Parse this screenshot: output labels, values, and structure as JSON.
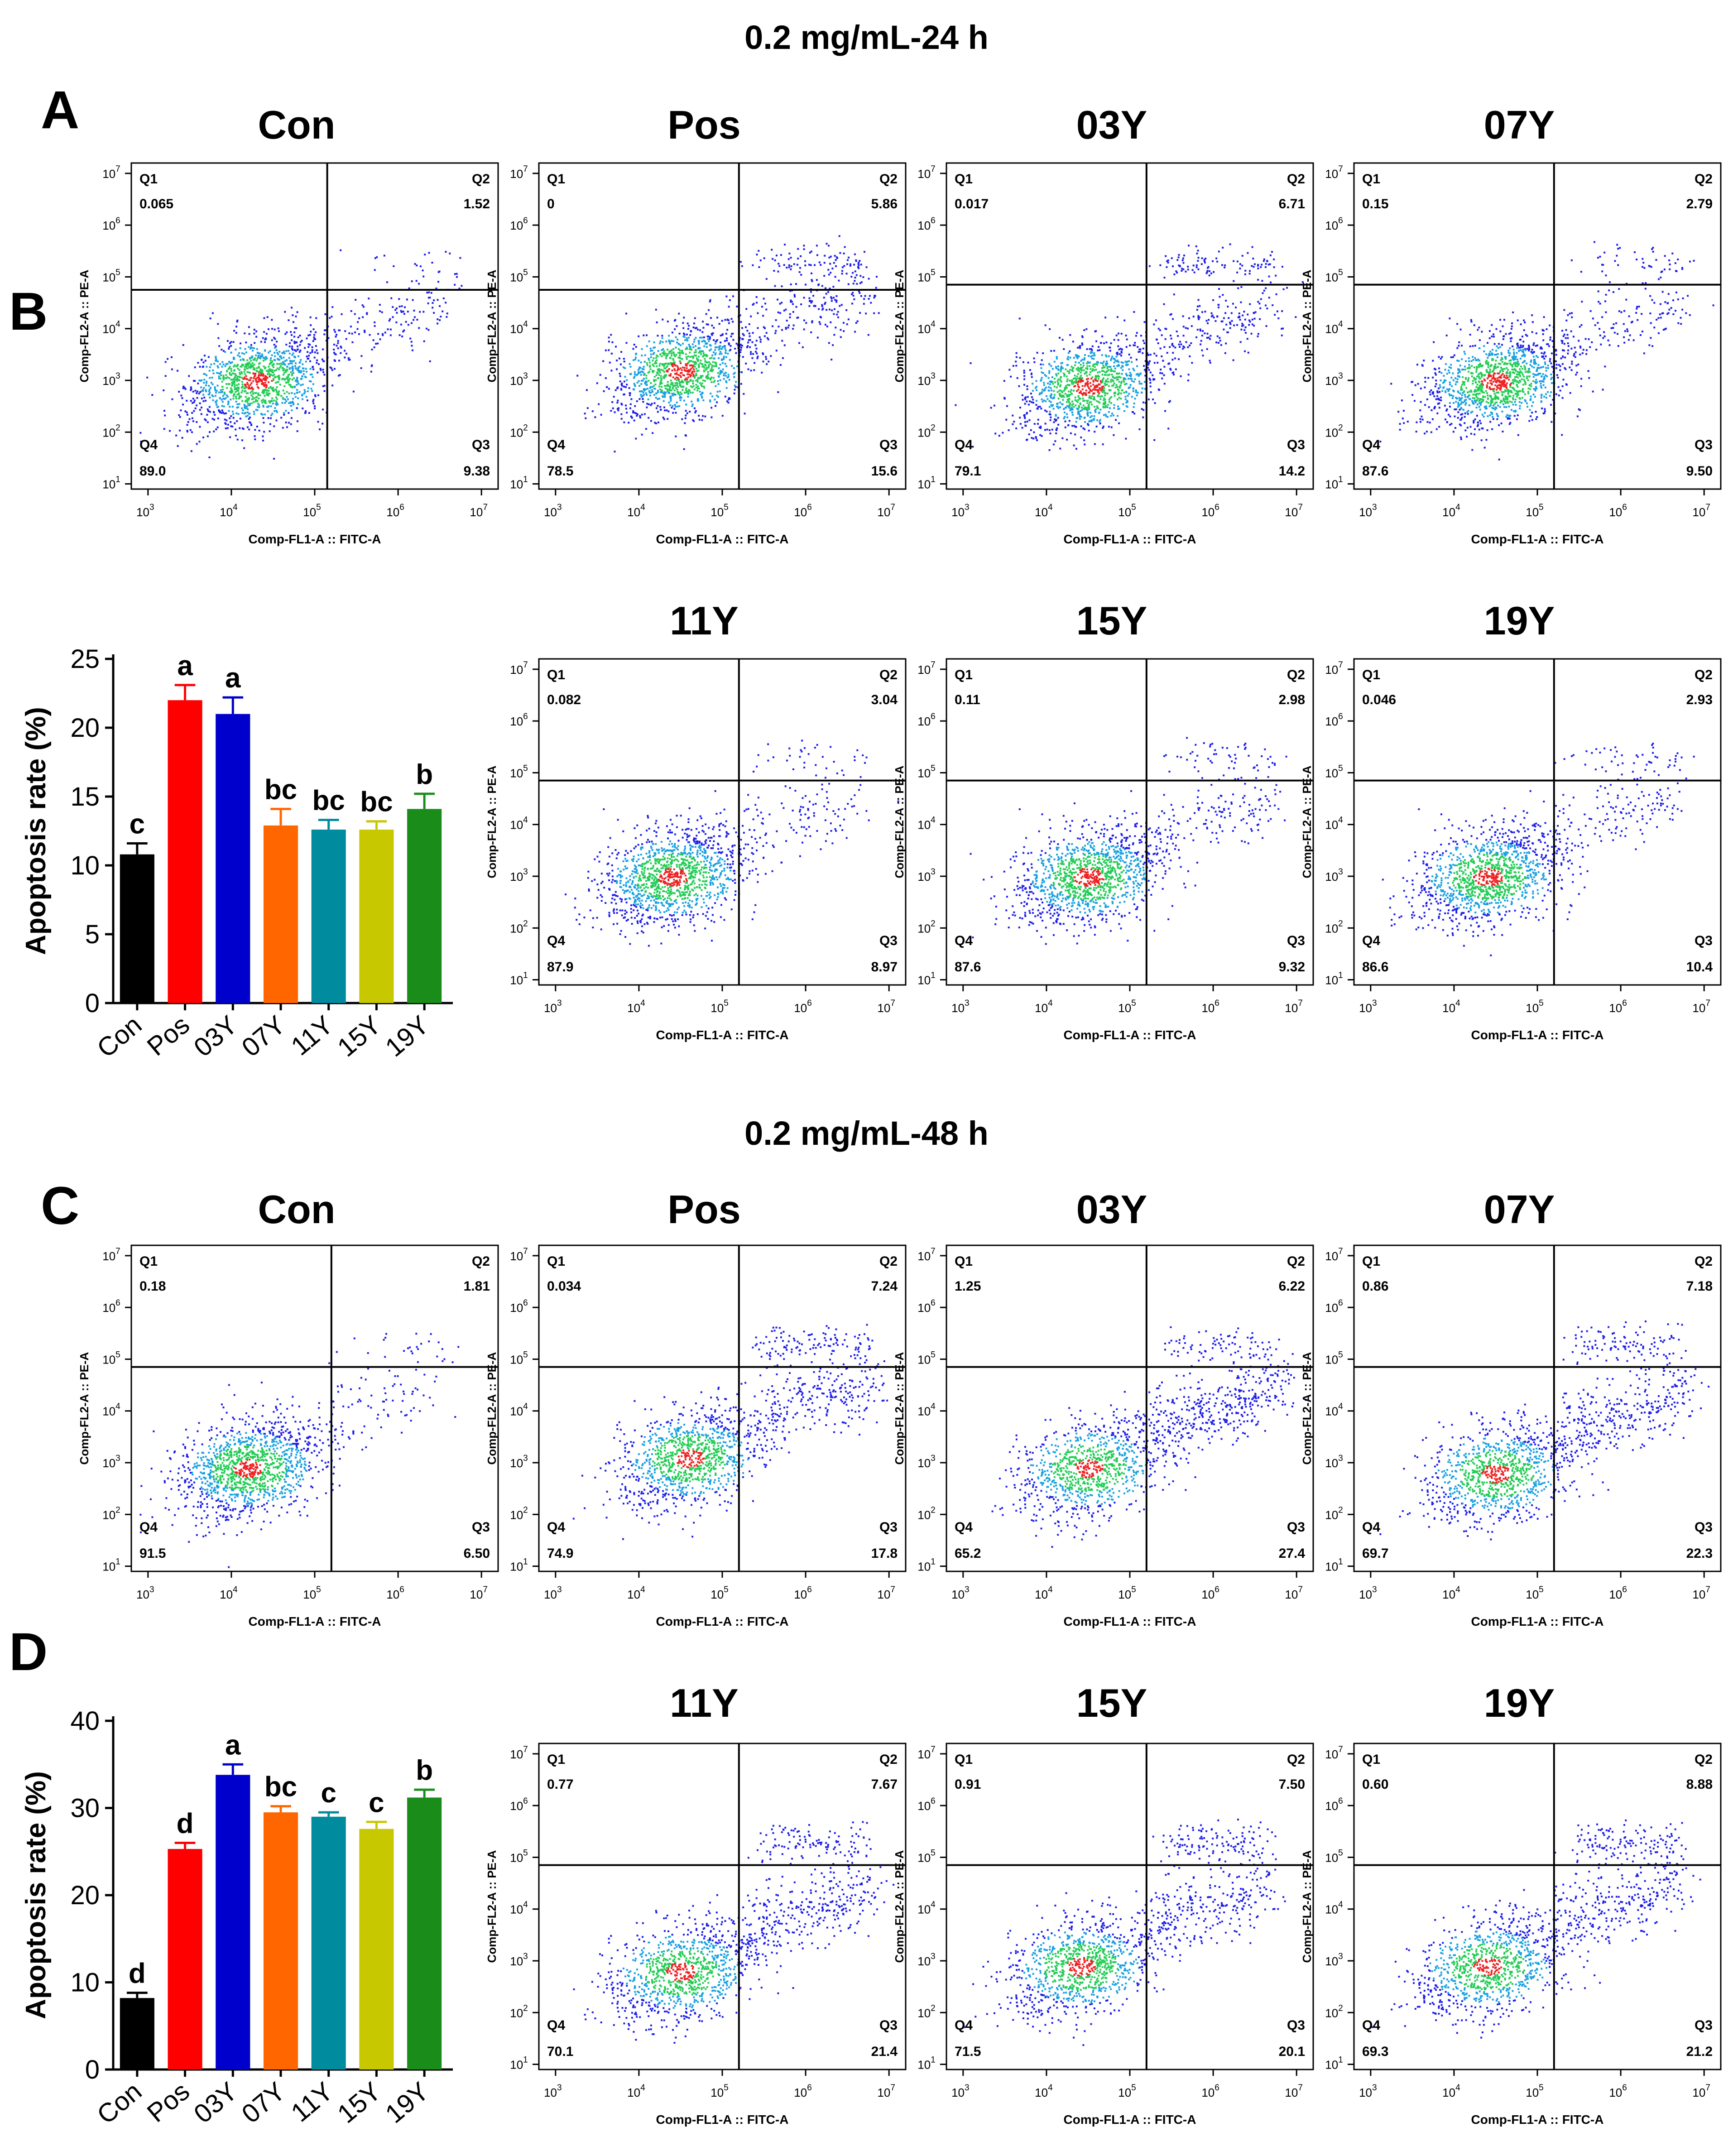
{
  "sections": [
    {
      "title": "0.2 mg/mL-24 h",
      "flow_panel_letter": "A",
      "bar_panel_letter": "B"
    },
    {
      "title": "0.2 mg/mL-48 h",
      "flow_panel_letter": "C",
      "bar_panel_letter": "D"
    }
  ],
  "flow_axes": {
    "xlabel": "Comp-FL1-A :: FITC-A",
    "ylabel": "Comp-FL2-A :: PE-A",
    "x_ticks": [
      "3",
      "4",
      "5",
      "6",
      "7"
    ],
    "y_ticks": [
      "1",
      "2",
      "3",
      "4",
      "5",
      "6",
      "7"
    ],
    "tick_base": "10",
    "quadrant_labels": [
      "Q1",
      "Q2",
      "Q3",
      "Q4"
    ]
  },
  "colors": {
    "plot_frame": "#000000",
    "density_low": "#1e1ee8",
    "density_mid": "#22cc55",
    "density_high": "#ee2222"
  },
  "chart_data": [
    {
      "type": "scatter",
      "description_kind": "flow-cytometry-quadrants",
      "section": "0.2 mg/mL-24 h",
      "plots": [
        {
          "name": "Con",
          "Q1": "0.065",
          "Q2": "1.52",
          "Q3": "9.38",
          "Q4": "89.0",
          "gate_x_log": 5.15,
          "gate_y_log": 4.75,
          "centroid": [
            4.3,
            3.0
          ]
        },
        {
          "name": "Pos",
          "Q1": "0",
          "Q2": "5.86",
          "Q3": "15.6",
          "Q4": "78.5",
          "gate_x_log": 5.2,
          "gate_y_log": 4.75,
          "centroid": [
            4.5,
            3.2
          ]
        },
        {
          "name": "03Y",
          "Q1": "0.017",
          "Q2": "6.71",
          "Q3": "14.2",
          "Q4": "79.1",
          "gate_x_log": 5.2,
          "gate_y_log": 4.85,
          "centroid": [
            4.5,
            2.9
          ]
        },
        {
          "name": "07Y",
          "Q1": "0.15",
          "Q2": "2.79",
          "Q3": "9.50",
          "Q4": "87.6",
          "gate_x_log": 5.2,
          "gate_y_log": 4.85,
          "centroid": [
            4.5,
            3.0
          ]
        },
        {
          "name": "11Y",
          "Q1": "0.082",
          "Q2": "3.04",
          "Q3": "8.97",
          "Q4": "87.9",
          "gate_x_log": 5.2,
          "gate_y_log": 4.85,
          "centroid": [
            4.4,
            3.0
          ]
        },
        {
          "name": "15Y",
          "Q1": "0.11",
          "Q2": "2.98",
          "Q3": "9.32",
          "Q4": "87.6",
          "gate_x_log": 5.2,
          "gate_y_log": 4.85,
          "centroid": [
            4.5,
            3.0
          ]
        },
        {
          "name": "19Y",
          "Q1": "0.046",
          "Q2": "2.93",
          "Q3": "10.4",
          "Q4": "86.6",
          "gate_x_log": 5.2,
          "gate_y_log": 4.85,
          "centroid": [
            4.4,
            3.0
          ]
        }
      ]
    },
    {
      "type": "bar",
      "section": "0.2 mg/mL-24 h",
      "categories": [
        "Con",
        "Pos",
        "03Y",
        "07Y",
        "11Y",
        "15Y",
        "19Y"
      ],
      "values": [
        10.8,
        22.0,
        21.0,
        12.9,
        12.6,
        12.6,
        14.1
      ],
      "errors": [
        0.8,
        1.1,
        1.2,
        1.2,
        0.7,
        0.6,
        1.1
      ],
      "letters": [
        "c",
        "a",
        "a",
        "bc",
        "bc",
        "bc",
        "b"
      ],
      "colors": [
        "#000000",
        "#ff0000",
        "#0000cc",
        "#ff6600",
        "#008b9e",
        "#c8c800",
        "#1a8c1a"
      ],
      "ylabel": "Apoptosis rate (%)",
      "ylim": [
        0,
        25
      ],
      "yticks": [
        0,
        5,
        10,
        15,
        20,
        25
      ]
    },
    {
      "type": "scatter",
      "description_kind": "flow-cytometry-quadrants",
      "section": "0.2 mg/mL-48 h",
      "plots": [
        {
          "name": "Con",
          "Q1": "0.18",
          "Q2": "1.81",
          "Q3": "6.50",
          "Q4": "91.5",
          "gate_x_log": 5.2,
          "gate_y_log": 4.85,
          "centroid": [
            4.2,
            2.9
          ]
        },
        {
          "name": "Pos",
          "Q1": "0.034",
          "Q2": "7.24",
          "Q3": "17.8",
          "Q4": "74.9",
          "gate_x_log": 5.2,
          "gate_y_log": 4.85,
          "centroid": [
            4.6,
            3.1
          ]
        },
        {
          "name": "03Y",
          "Q1": "1.25",
          "Q2": "6.22",
          "Q3": "27.4",
          "Q4": "65.2",
          "gate_x_log": 5.2,
          "gate_y_log": 4.85,
          "centroid": [
            4.5,
            2.9
          ]
        },
        {
          "name": "07Y",
          "Q1": "0.86",
          "Q2": "7.18",
          "Q3": "22.3",
          "Q4": "69.7",
          "gate_x_log": 5.2,
          "gate_y_log": 4.85,
          "centroid": [
            4.5,
            2.8
          ]
        },
        {
          "name": "11Y",
          "Q1": "0.77",
          "Q2": "7.67",
          "Q3": "21.4",
          "Q4": "70.1",
          "gate_x_log": 5.2,
          "gate_y_log": 4.85,
          "centroid": [
            4.5,
            2.8
          ]
        },
        {
          "name": "15Y",
          "Q1": "0.91",
          "Q2": "7.50",
          "Q3": "20.1",
          "Q4": "71.5",
          "gate_x_log": 5.2,
          "gate_y_log": 4.85,
          "centroid": [
            4.4,
            2.9
          ]
        },
        {
          "name": "19Y",
          "Q1": "0.60",
          "Q2": "8.88",
          "Q3": "21.2",
          "Q4": "69.3",
          "gate_x_log": 5.2,
          "gate_y_log": 4.85,
          "centroid": [
            4.4,
            2.9
          ]
        }
      ]
    },
    {
      "type": "bar",
      "section": "0.2 mg/mL-48 h",
      "categories": [
        "Con",
        "Pos",
        "03Y",
        "07Y",
        "11Y",
        "15Y",
        "19Y"
      ],
      "values": [
        8.2,
        25.3,
        33.8,
        29.5,
        29.0,
        27.6,
        31.2
      ],
      "errors": [
        0.6,
        0.7,
        1.2,
        0.7,
        0.5,
        0.8,
        0.9
      ],
      "letters": [
        "d",
        "d",
        "a",
        "bc",
        "c",
        "c",
        "b"
      ],
      "colors": [
        "#000000",
        "#ff0000",
        "#0000cc",
        "#ff6600",
        "#008b9e",
        "#c8c800",
        "#1a8c1a"
      ],
      "ylabel": "Apoptosis rate (%)",
      "ylim": [
        0,
        40
      ],
      "yticks": [
        0,
        10,
        20,
        30,
        40
      ]
    }
  ]
}
